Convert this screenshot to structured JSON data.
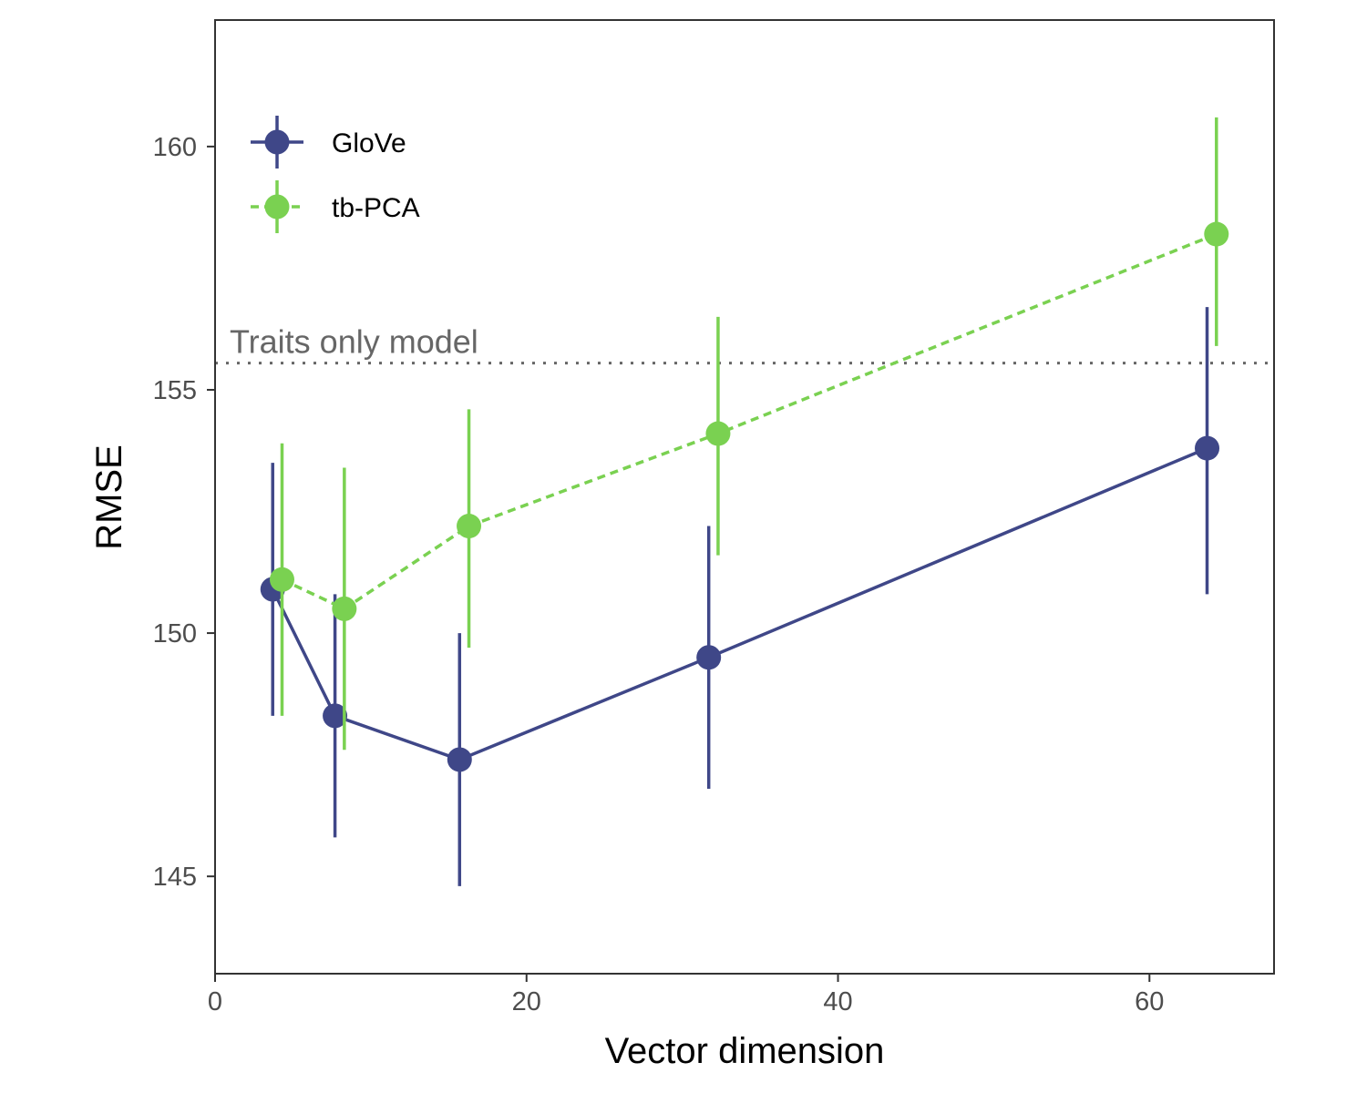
{
  "chart_data": {
    "type": "line",
    "xlabel": "Vector dimension",
    "ylabel": "RMSE",
    "xlim": [
      0,
      68
    ],
    "ylim": [
      143,
      162.6
    ],
    "x_ticks": [
      0,
      20,
      40,
      60
    ],
    "y_ticks": [
      145,
      150,
      155,
      160
    ],
    "grid": false,
    "legend_position": "top-left",
    "reference_line": {
      "label": "Traits only model",
      "y": 155.55,
      "color": "#666666"
    },
    "series": [
      {
        "name": "GloVe",
        "color": "#3f4788",
        "line_style": "solid",
        "x": [
          4,
          8,
          16,
          32,
          64
        ],
        "y": [
          150.9,
          148.3,
          147.4,
          149.5,
          153.8
        ],
        "lower": [
          148.3,
          145.8,
          144.8,
          146.8,
          150.8
        ],
        "upper": [
          153.5,
          150.8,
          150.0,
          152.2,
          156.7
        ]
      },
      {
        "name": "tb-PCA",
        "color": "#7ad151",
        "line_style": "dashed",
        "x": [
          4,
          8,
          16,
          32,
          64
        ],
        "y": [
          151.1,
          150.5,
          152.2,
          154.1,
          158.2
        ],
        "lower": [
          148.3,
          147.6,
          149.7,
          151.6,
          155.9
        ],
        "upper": [
          153.9,
          153.4,
          154.6,
          156.5,
          160.6
        ]
      }
    ]
  }
}
